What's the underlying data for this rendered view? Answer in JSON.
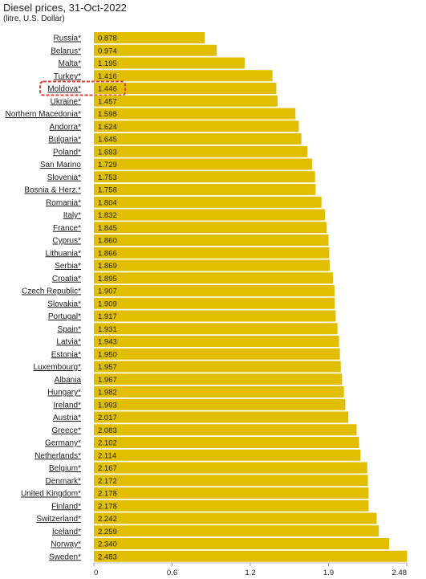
{
  "chart_data": {
    "type": "bar",
    "orientation": "horizontal",
    "title": "Diesel prices, 31-Oct-2022",
    "subtitle": "(litre, U.S. Dollar)",
    "bar_color": "#e1bf00",
    "highlight_color": "#e0413c",
    "highlighted_category": "Moldova*",
    "xlim": [
      0,
      2.48
    ],
    "x_ticks": [
      "0",
      "0.6",
      "1.2",
      "1.9",
      "2.48"
    ],
    "x_tick_values": [
      0,
      0.62,
      1.24,
      1.86,
      2.48
    ],
    "categories": [
      "Russia*",
      "Belarus*",
      "Malta*",
      "Turkey*",
      "Moldova*",
      "Ukraine*",
      "Northern Macedonia*",
      "Andorra*",
      "Bulgaria*",
      "Poland*",
      "San Marino",
      "Slovenia*",
      "Bosnia & Herz.*",
      "Romania*",
      "Italy*",
      "France*",
      "Cyprus*",
      "Lithuania*",
      "Serbia*",
      "Croatia*",
      "Czech Republic*",
      "Slovakia*",
      "Portugal*",
      "Spain*",
      "Latvia*",
      "Estonia*",
      "Luxembourg*",
      "Albania",
      "Hungary*",
      "Ireland*",
      "Austria*",
      "Greece*",
      "Germany*",
      "Netherlands*",
      "Belgium*",
      "Denmark*",
      "United Kingdom*",
      "Finland*",
      "Switzerland*",
      "Iceland*",
      "Norway*",
      "Sweden*"
    ],
    "values": [
      0.878,
      0.974,
      1.195,
      1.416,
      1.446,
      1.457,
      1.598,
      1.624,
      1.645,
      1.693,
      1.729,
      1.753,
      1.758,
      1.804,
      1.832,
      1.845,
      1.86,
      1.866,
      1.869,
      1.895,
      1.907,
      1.909,
      1.917,
      1.931,
      1.943,
      1.95,
      1.957,
      1.967,
      1.982,
      1.993,
      2.017,
      2.083,
      2.102,
      2.114,
      2.167,
      2.172,
      2.178,
      2.178,
      2.242,
      2.259,
      2.34,
      2.483
    ],
    "value_labels": [
      "0.878",
      "0.974",
      "1.195",
      "1.416",
      "1.446",
      "1.457",
      "1.598",
      "1.624",
      "1.645",
      "1.693",
      "1.729",
      "1.753",
      "1.758",
      "1.804",
      "1.832",
      "1.845",
      "1.860",
      "1.866",
      "1.869",
      "1.895",
      "1.907",
      "1.909",
      "1.917",
      "1.931",
      "1.943",
      "1.950",
      "1.957",
      "1.967",
      "1.982",
      "1.993",
      "2.017",
      "2.083",
      "2.102",
      "2.114",
      "2.167",
      "2.172",
      "2.178",
      "2.178",
      "2.242",
      "2.259",
      "2.340",
      "2.483"
    ]
  }
}
